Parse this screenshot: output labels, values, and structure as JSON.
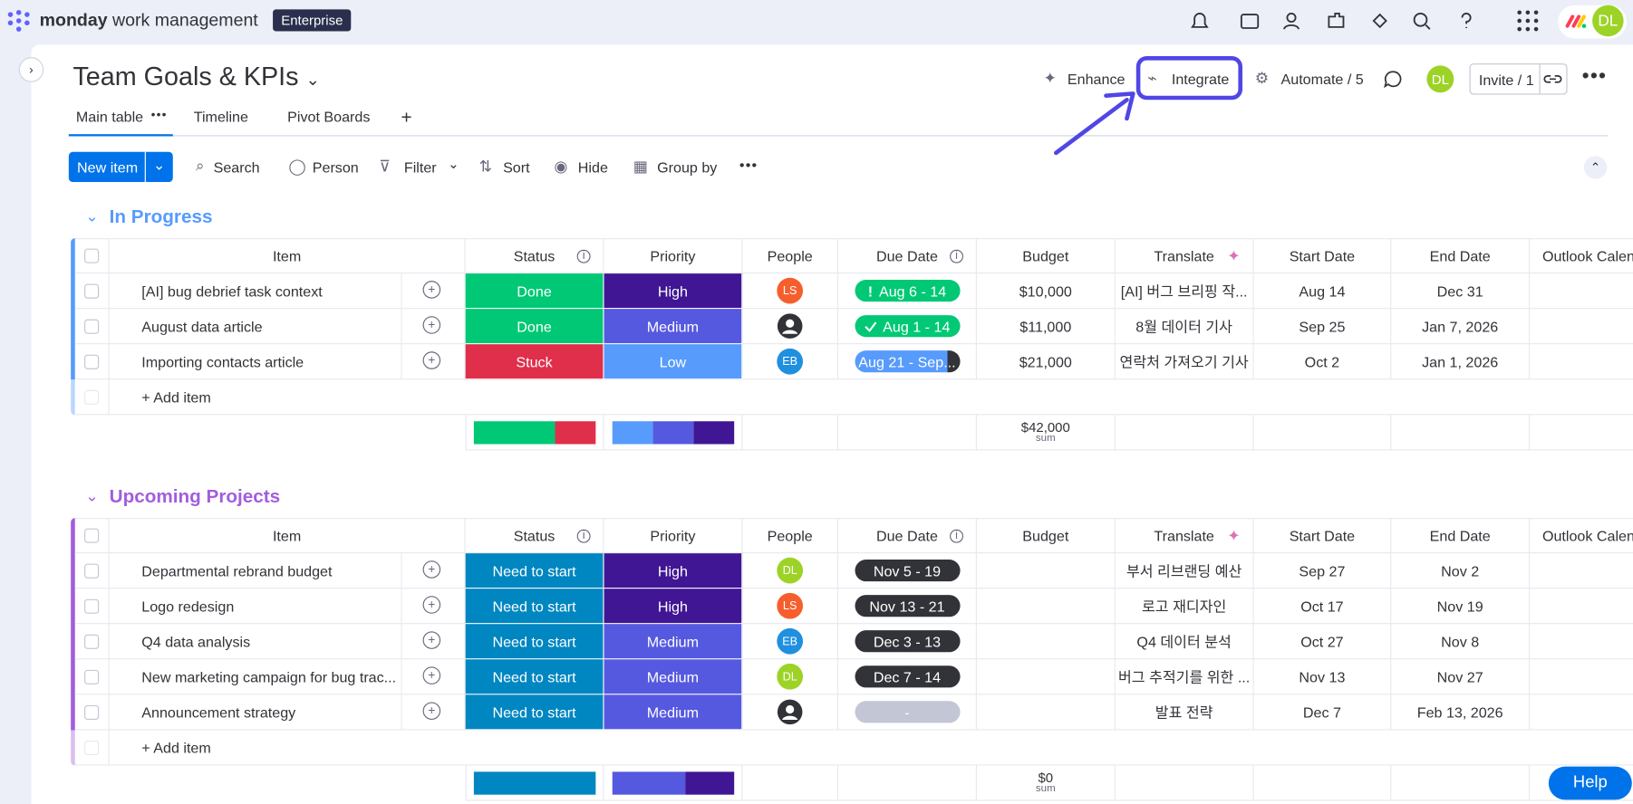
{
  "app": {
    "brand": "monday",
    "product": "work management",
    "plan": "Enterprise",
    "user": "DL"
  },
  "board": {
    "title": "Team Goals & KPIs",
    "views": [
      "Main table",
      "Timeline",
      "Pivot Boards"
    ],
    "actions": [
      "Enhance",
      "Integrate",
      "Automate / 5"
    ],
    "avatar": "DL",
    "invite": "Invite / 1"
  },
  "toolbar": {
    "new_item": "New item",
    "tools": [
      "Search",
      "Person",
      "Filter",
      "Sort",
      "Hide",
      "Group by"
    ]
  },
  "columns": [
    "Item",
    "Status",
    "Priority",
    "People",
    "Due Date",
    "Budget",
    "Translate",
    "Start Date",
    "End Date",
    "Outlook Calendar"
  ],
  "groups": [
    {
      "name": "In Progress",
      "color": "#579bfc",
      "rows": [
        {
          "item": "[AI] bug debrief task context",
          "status": "Done",
          "priority": "High",
          "person": "LS",
          "due": "Aug 6 - 14",
          "due_flag": "!",
          "budget": "$10,000",
          "translate": "[AI] 버그 브리핑 작...",
          "start": "Aug 14",
          "end": "Dec 31"
        },
        {
          "item": "August data article",
          "status": "Done",
          "priority": "Medium",
          "person": null,
          "due": "Aug 1 - 14",
          "budget": "$11,000",
          "translate": "8월 데이터 기사",
          "start": "Sep 25",
          "end": "Jan 7, 2026"
        },
        {
          "item": "Importing contacts article",
          "status": "Stuck",
          "priority": "Low",
          "person": "EB",
          "due": "Aug 21 - Sep...",
          "budget": "$21,000",
          "translate": "연락처 가져오기 기사",
          "start": "Oct 2",
          "end": "Jan 1, 2026"
        }
      ],
      "add_item": "+ Add item",
      "summary": {
        "budget": "$42,000",
        "label": "sum"
      }
    },
    {
      "name": "Upcoming Projects",
      "color": "#a25ddc",
      "rows": [
        {
          "item": "Departmental rebrand budget",
          "status": "Need to start",
          "priority": "High",
          "person": "DL",
          "due": "Nov 5 - 19",
          "budget": null,
          "translate": "부서 리브랜딩 예산",
          "start": "Sep 27",
          "end": "Nov 2"
        },
        {
          "item": "Logo redesign",
          "status": "Need to start",
          "priority": "High",
          "person": "LS",
          "due": "Nov 13 - 21",
          "budget": null,
          "translate": "로고 재디자인",
          "start": "Oct 17",
          "end": "Nov 19"
        },
        {
          "item": "Q4 data analysis",
          "status": "Need to start",
          "priority": "Medium",
          "person": "EB",
          "due": "Dec 3 - 13",
          "budget": null,
          "translate": "Q4 데이터 분석",
          "start": "Oct 27",
          "end": "Nov 8"
        },
        {
          "item": "New marketing campaign for bug trac...",
          "status": "Need to start",
          "priority": "Medium",
          "person": "DL",
          "due": "Dec 7 - 14",
          "budget": null,
          "translate": "버그 추적기를 위한 ...",
          "start": "Nov 13",
          "end": "Nov 27"
        },
        {
          "item": "Announcement strategy",
          "status": "Need to start",
          "priority": "Medium",
          "person": null,
          "due": "-",
          "budget": null,
          "translate": "발표 전략",
          "start": "Dec 7",
          "end": "Feb 13, 2026"
        }
      ],
      "add_item": "+ Add item",
      "summary": {
        "budget": "$0",
        "label": "sum"
      }
    }
  ],
  "help": "Help"
}
